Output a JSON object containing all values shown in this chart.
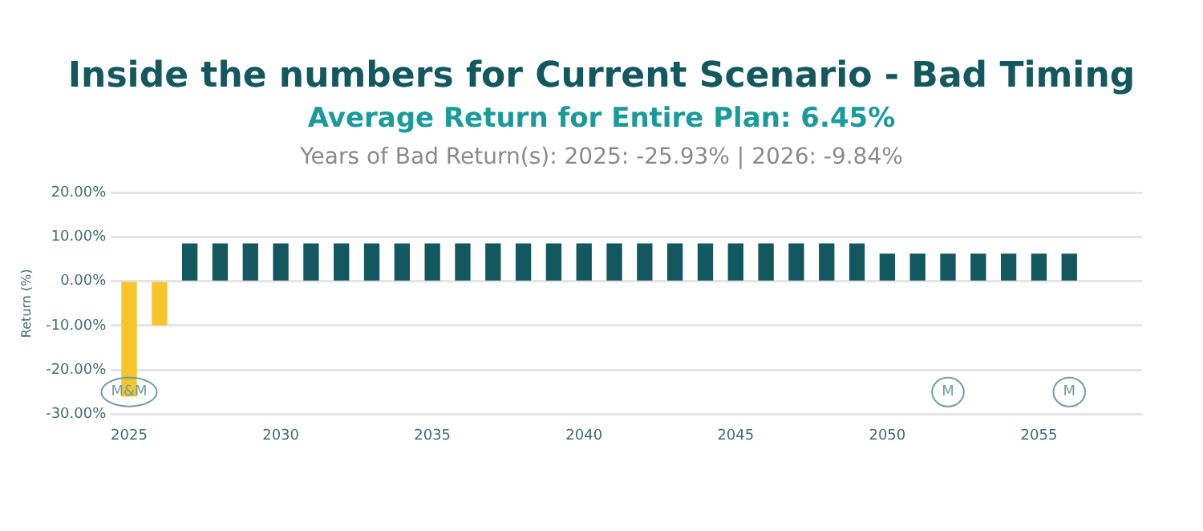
{
  "chart_data": {
    "type": "bar",
    "title": "Inside the numbers for Current Scenario - Bad Timing",
    "subtitle": "Average Return for Entire Plan: 6.45%",
    "ylabel": "Return (%)",
    "x": [
      2025,
      2026,
      2027,
      2028,
      2029,
      2030,
      2031,
      2032,
      2033,
      2034,
      2035,
      2036,
      2037,
      2038,
      2039,
      2040,
      2041,
      2042,
      2043,
      2044,
      2045,
      2046,
      2047,
      2048,
      2049,
      2050,
      2051,
      2052,
      2053,
      2054,
      2055,
      2056
    ],
    "values": [
      -25.93,
      -9.84,
      8.4,
      8.4,
      8.4,
      8.4,
      8.4,
      8.4,
      8.4,
      8.4,
      8.4,
      8.4,
      8.4,
      8.4,
      8.4,
      8.4,
      8.4,
      8.4,
      8.4,
      8.4,
      8.4,
      8.4,
      8.4,
      8.4,
      8.4,
      6.1,
      6.1,
      6.1,
      6.1,
      6.1,
      6.1,
      6.1
    ],
    "colors": [
      "#f5c52b",
      "#f5c52b",
      "#12585e",
      "#12585e",
      "#12585e",
      "#12585e",
      "#12585e",
      "#12585e",
      "#12585e",
      "#12585e",
      "#12585e",
      "#12585e",
      "#12585e",
      "#12585e",
      "#12585e",
      "#12585e",
      "#12585e",
      "#12585e",
      "#12585e",
      "#12585e",
      "#12585e",
      "#12585e",
      "#12585e",
      "#12585e",
      "#12585e",
      "#12585e",
      "#12585e",
      "#12585e",
      "#12585e",
      "#12585e",
      "#12585e",
      "#12585e"
    ],
    "xlim": [
      2024.4,
      2058.4
    ],
    "xticks": [
      2025,
      2030,
      2035,
      2040,
      2045,
      2050,
      2055
    ],
    "ylim": [
      -30,
      20
    ],
    "yticks": [
      {
        "value": -30,
        "label": "-30.00%"
      },
      {
        "value": -20,
        "label": "-20.00%"
      },
      {
        "value": -10,
        "label": "-10.00%"
      },
      {
        "value": 0,
        "label": "0.00%"
      },
      {
        "value": 10,
        "label": "10.00%"
      },
      {
        "value": 20,
        "label": "20.00%"
      }
    ],
    "grid": "y",
    "legend": false,
    "annotations": [
      "Years of Bad Return(s): 2025: -25.93% | 2026: -9.84%",
      {
        "text": "M&M",
        "x": 2025,
        "y": -25
      },
      {
        "text": "M",
        "x": 2052,
        "y": -25
      },
      {
        "text": "M",
        "x": 2056,
        "y": -25
      }
    ]
  }
}
